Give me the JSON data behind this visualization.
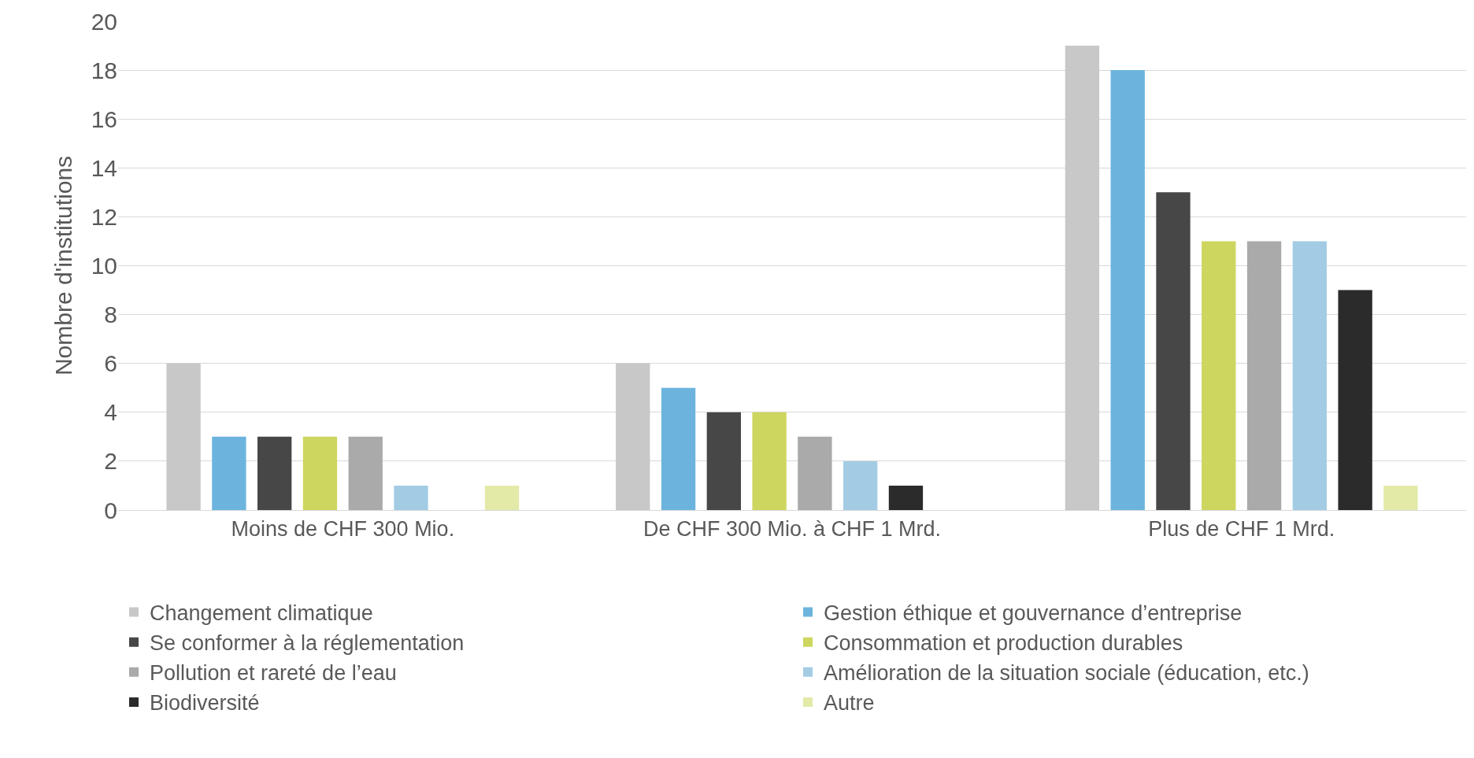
{
  "chart_data": {
    "type": "bar",
    "ylabel": "Nombre d'institutions",
    "categories": [
      "Moins de CHF 300 Mio.",
      "De CHF 300 Mio. à CHF 1 Mrd.",
      "Plus de CHF 1 Mrd."
    ],
    "series": [
      {
        "name": "Changement climatique",
        "color": "#c8c8c8",
        "values": [
          6,
          6,
          19
        ]
      },
      {
        "name": "Gestion éthique et gouvernance d’entreprise",
        "color": "#6cb4de",
        "values": [
          3,
          5,
          18
        ]
      },
      {
        "name": "Se conformer à la réglementation",
        "color": "#474747",
        "values": [
          3,
          4,
          13
        ]
      },
      {
        "name": "Consommation et production durables",
        "color": "#cdd65e",
        "values": [
          3,
          4,
          11
        ]
      },
      {
        "name": "Pollution et rareté de l’eau",
        "color": "#aaaaaa",
        "values": [
          3,
          3,
          11
        ]
      },
      {
        "name": "Amélioration de la situation sociale (éducation, etc.)",
        "color": "#a3cce4",
        "values": [
          1,
          2,
          11
        ]
      },
      {
        "name": "Biodiversité",
        "color": "#2b2b2b",
        "values": [
          0,
          1,
          9
        ]
      },
      {
        "name": "Autre",
        "color": "#e3eaa8",
        "values": [
          1,
          0,
          1
        ]
      }
    ],
    "ylim": [
      0,
      20
    ],
    "yticks": [
      0,
      2,
      4,
      6,
      8,
      10,
      12,
      14,
      16,
      18,
      20
    ],
    "grid": "y",
    "legend": "bottom"
  }
}
